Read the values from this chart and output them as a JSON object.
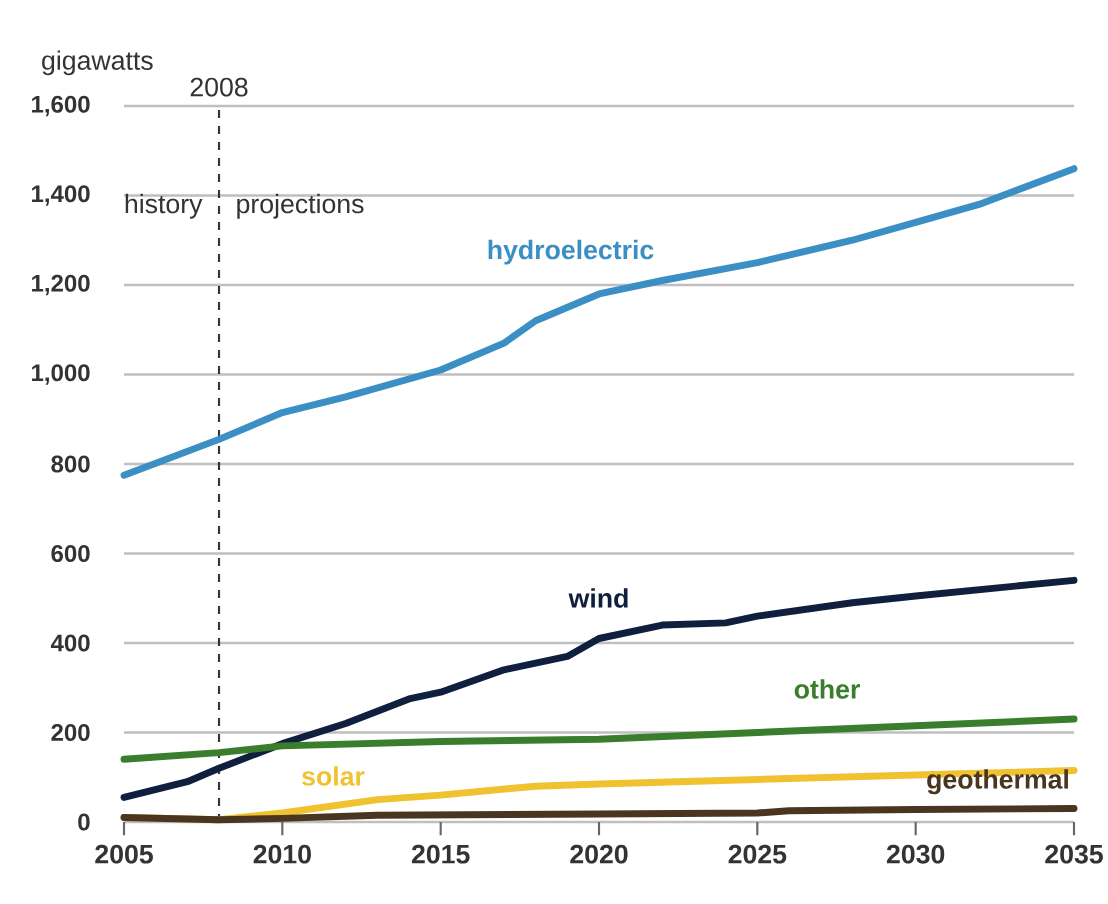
{
  "chart_data": {
    "type": "line",
    "ylabel": "gigawatts",
    "xlim": [
      2005,
      2035
    ],
    "xticks": [
      2005,
      2010,
      2015,
      2020,
      2025,
      2030,
      2035
    ],
    "ylim": [
      0,
      1600
    ],
    "yticks": [
      0,
      200,
      400,
      600,
      800,
      {
        "value": 1000,
        "label": "1,000"
      },
      {
        "value": 1200,
        "label": "1,200"
      },
      {
        "value": 1400,
        "label": "1,400"
      },
      {
        "value": 1600,
        "label": "1,600"
      }
    ],
    "grid": "y",
    "ref_lines": [
      {
        "axis": "x",
        "value": 2008,
        "label": "2008",
        "line_style": "dashed",
        "color": "#333333"
      }
    ],
    "annotations": [
      "history",
      "projections"
    ],
    "series": [
      {
        "name": "hydroelectric",
        "color": "#3b8fc4",
        "x": [
          2005,
          2008,
          2010,
          2012,
          2015,
          2017,
          2018,
          2020,
          2022,
          2025,
          2028,
          2030,
          2032,
          2035
        ],
        "values": [
          775,
          855,
          915,
          950,
          1010,
          1070,
          1120,
          1180,
          1210,
          1250,
          1300,
          1340,
          1380,
          1460
        ]
      },
      {
        "name": "wind",
        "color": "#0f1f3d",
        "x": [
          2005,
          2007,
          2008,
          2010,
          2012,
          2014,
          2015,
          2017,
          2019,
          2020,
          2022,
          2024,
          2025,
          2028,
          2030,
          2035
        ],
        "values": [
          55,
          90,
          120,
          175,
          220,
          275,
          290,
          340,
          370,
          410,
          440,
          445,
          460,
          490,
          505,
          540
        ]
      },
      {
        "name": "other",
        "color": "#3a7d2c",
        "x": [
          2005,
          2008,
          2010,
          2015,
          2020,
          2025,
          2030,
          2035
        ],
        "values": [
          140,
          155,
          170,
          180,
          185,
          200,
          215,
          230
        ]
      },
      {
        "name": "solar",
        "color": "#f0c230",
        "x": [
          2005,
          2008,
          2010,
          2013,
          2015,
          2018,
          2020,
          2025,
          2030,
          2035
        ],
        "values": [
          10,
          5,
          20,
          50,
          60,
          80,
          85,
          95,
          105,
          115
        ]
      },
      {
        "name": "geothermal",
        "color": "#4a3520",
        "x": [
          2005,
          2008,
          2010,
          2013,
          2020,
          2025,
          2026,
          2030,
          2035
        ],
        "values": [
          10,
          5,
          8,
          15,
          18,
          20,
          25,
          28,
          30
        ]
      }
    ]
  }
}
